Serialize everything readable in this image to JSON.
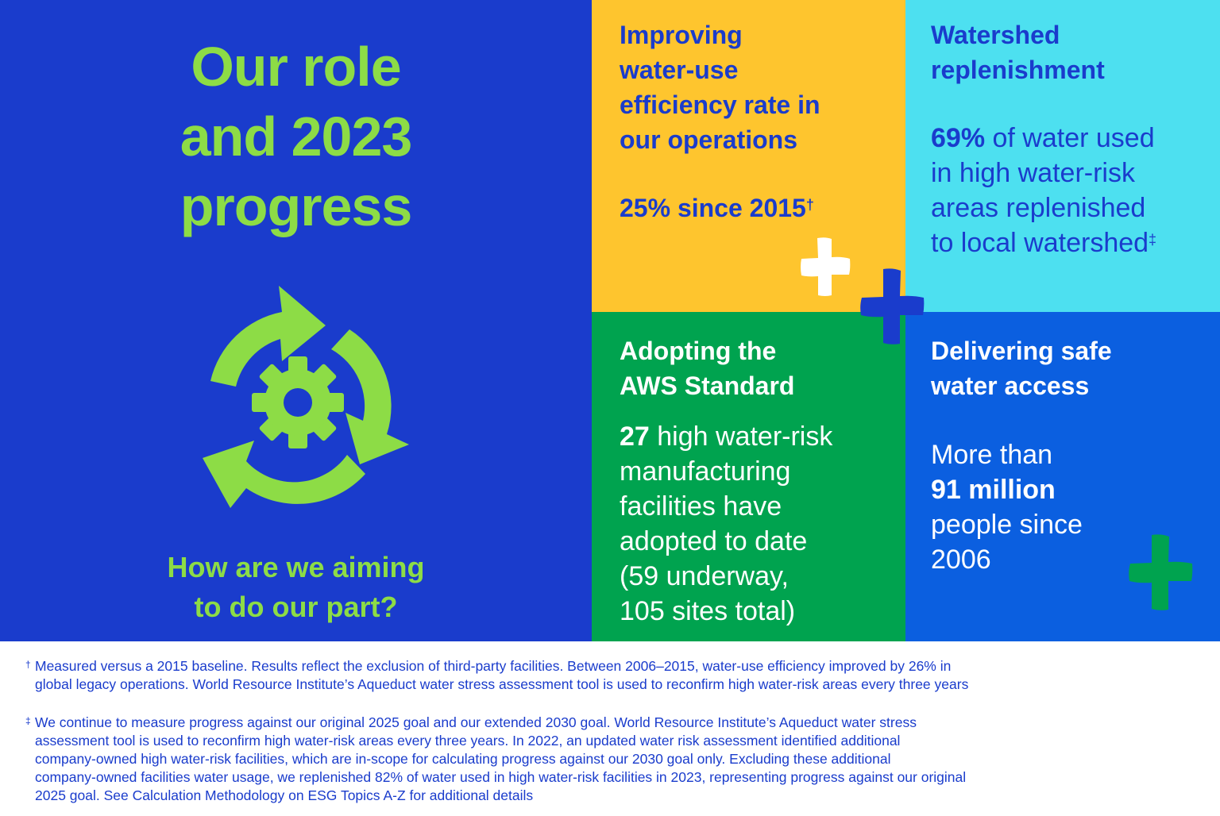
{
  "left": {
    "title_lines": [
      "Our role",
      "and 2023",
      "progress"
    ],
    "question_lines": [
      "How are we aiming",
      "to do our part?"
    ],
    "icon": "recycle-gear-icon"
  },
  "cards": {
    "efficiency": {
      "title_lines": [
        "Improving",
        "water-use",
        "efficiency rate in",
        "our operations"
      ],
      "stat": "25% since 2015",
      "stat_mark": "†"
    },
    "replenishment": {
      "title_lines": [
        "Watershed",
        "replenishment"
      ],
      "stat_bold": "69%",
      "line1_rest": " of water used",
      "line2": "in high water-risk",
      "line3": "areas replenished",
      "line4": "to local watershed",
      "mark": "‡"
    },
    "aws": {
      "title_lines": [
        "Adopting the",
        "AWS Standard"
      ],
      "stat_bold": "27",
      "line1_rest": " high water-risk",
      "lines": [
        "manufacturing",
        "facilities have",
        "adopted to date",
        "(59 underway,",
        "105 sites total)"
      ]
    },
    "access": {
      "title_lines": [
        "Delivering safe",
        "water access"
      ],
      "line1": "More than",
      "stat_bold": "91 million",
      "lines": [
        "people since",
        "2006"
      ]
    }
  },
  "footnotes": [
    {
      "mark": "†",
      "lines": [
        "Measured versus a 2015 baseline. Results reflect the exclusion of third-party facilities. Between 2006–2015, water-use efficiency improved by 26% in",
        "global legacy operations. World Resource Institute’s Aqueduct water stress assessment tool is used to reconfirm high water-risk areas every three years"
      ]
    },
    {
      "mark": "‡",
      "lines": [
        "We continue to measure progress against our original 2025 goal and our extended 2030 goal. World Resource Institute’s Aqueduct water stress",
        "assessment tool is used to reconfirm high water-risk areas every three years. In 2022, an updated water risk assessment identified additional",
        "company-owned high water-risk facilities, which are in-scope for calculating progress against our 2030 goal only. Excluding these additional",
        "company-owned facilities water usage, we replenished 82% of water used in high water-risk facilities in 2023, representing progress against our original",
        "2025 goal. See Calculation Methodology on ESG Topics A-Z for additional details"
      ]
    }
  ],
  "colors": {
    "navy": "#1a3ccc",
    "lime": "#8ddc46",
    "yellow": "#fec52e",
    "cyan": "#4de0f0",
    "green": "#00a34f",
    "blue": "#0b5fe0"
  }
}
